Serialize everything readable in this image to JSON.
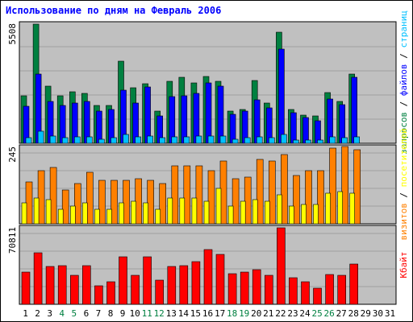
{
  "chart_data": {
    "type": "bar",
    "title": "Использование по дням на Февраль 2006",
    "categories": [
      "1",
      "2",
      "3",
      "4",
      "5",
      "6",
      "7",
      "8",
      "9",
      "10",
      "11",
      "12",
      "13",
      "14",
      "15",
      "16",
      "17",
      "18",
      "19",
      "20",
      "21",
      "22",
      "23",
      "24",
      "25",
      "26",
      "27",
      "28",
      "29",
      "30",
      "31"
    ],
    "weekend_days": [
      "4",
      "5",
      "11",
      "12",
      "18",
      "19",
      "25",
      "26"
    ],
    "panels": [
      {
        "id": "requests",
        "max_label": "5508",
        "max": 5508,
        "ylabel_parts": [
          {
            "text": "запросов",
            "color": "#008040"
          },
          {
            "text": " / ",
            "color": "#000000"
          },
          {
            "text": "файлов",
            "color": "#0000ff"
          },
          {
            "text": " / ",
            "color": "#000000"
          },
          {
            "text": "страниц",
            "color": "#00c0ff"
          }
        ],
        "series": [
          {
            "name": "запросов",
            "color": "#008040",
            "values": [
              2200,
              5508,
              2650,
              2200,
              2400,
              2300,
              1750,
              1750,
              3800,
              2550,
              2750,
              1500,
              2850,
              3050,
              2800,
              3100,
              2850,
              1500,
              1550,
              2900,
              1850,
              5150,
              1550,
              1300,
              1250,
              2350,
              1950,
              3200,
              0,
              0,
              0
            ]
          },
          {
            "name": "файлов",
            "color": "#0000ff",
            "values": [
              1700,
              3200,
              1950,
              1750,
              1850,
              1950,
              1500,
              1550,
              2450,
              1850,
              2600,
              1250,
              2150,
              2200,
              2300,
              2800,
              2650,
              1350,
              1500,
              2000,
              1650,
              4350,
              1400,
              1200,
              1050,
              2050,
              1800,
              3050,
              0,
              0,
              0
            ]
          },
          {
            "name": "страниц",
            "color": "#00c0ff",
            "values": [
              250,
              550,
              350,
              250,
              300,
              300,
              200,
              250,
              400,
              300,
              350,
              250,
              300,
              300,
              350,
              350,
              350,
              200,
              250,
              300,
              250,
              400,
              150,
              150,
              150,
              300,
              250,
              300,
              0,
              0,
              0
            ]
          }
        ]
      },
      {
        "id": "visits",
        "max_label": "245",
        "max": 245,
        "ylabel_parts": [
          {
            "text": "визитов",
            "color": "#ff8000"
          },
          {
            "text": " / ",
            "color": "#000000"
          },
          {
            "text": "посетителей",
            "color": "#ffff00"
          }
        ],
        "series": [
          {
            "name": "визитов",
            "color": "#ff8000",
            "values": [
              130,
              165,
              175,
              105,
              125,
              160,
              135,
              135,
              135,
              140,
              135,
              125,
              180,
              180,
              180,
              165,
              195,
              140,
              145,
              200,
              195,
              215,
              150,
              165,
              165,
              235,
              240,
              230,
              0,
              0,
              0
            ]
          },
          {
            "name": "посетителей",
            "color": "#ffff00",
            "values": [
              65,
              80,
              75,
              45,
              55,
              65,
              45,
              45,
              65,
              70,
              65,
              45,
              80,
              80,
              80,
              70,
              110,
              55,
              70,
              75,
              70,
              90,
              55,
              60,
              60,
              95,
              100,
              95,
              0,
              0,
              0
            ]
          }
        ]
      },
      {
        "id": "traffic",
        "max_label": "70811",
        "max": 70811,
        "ylabel_parts": [
          {
            "text": "Кбайт",
            "color": "#ff0000"
          }
        ],
        "series": [
          {
            "name": "Кбайт",
            "color": "#ff0000",
            "values": [
              30000,
              48000,
              35000,
              35500,
              27000,
              36000,
              17000,
              21000,
              44000,
              27000,
              44000,
              22000,
              35000,
              35500,
              39500,
              50500,
              46000,
              28000,
              29500,
              32000,
              27000,
              70811,
              24500,
              21000,
              15000,
              27500,
              26500,
              37500,
              0,
              0,
              0
            ]
          }
        ]
      }
    ]
  }
}
